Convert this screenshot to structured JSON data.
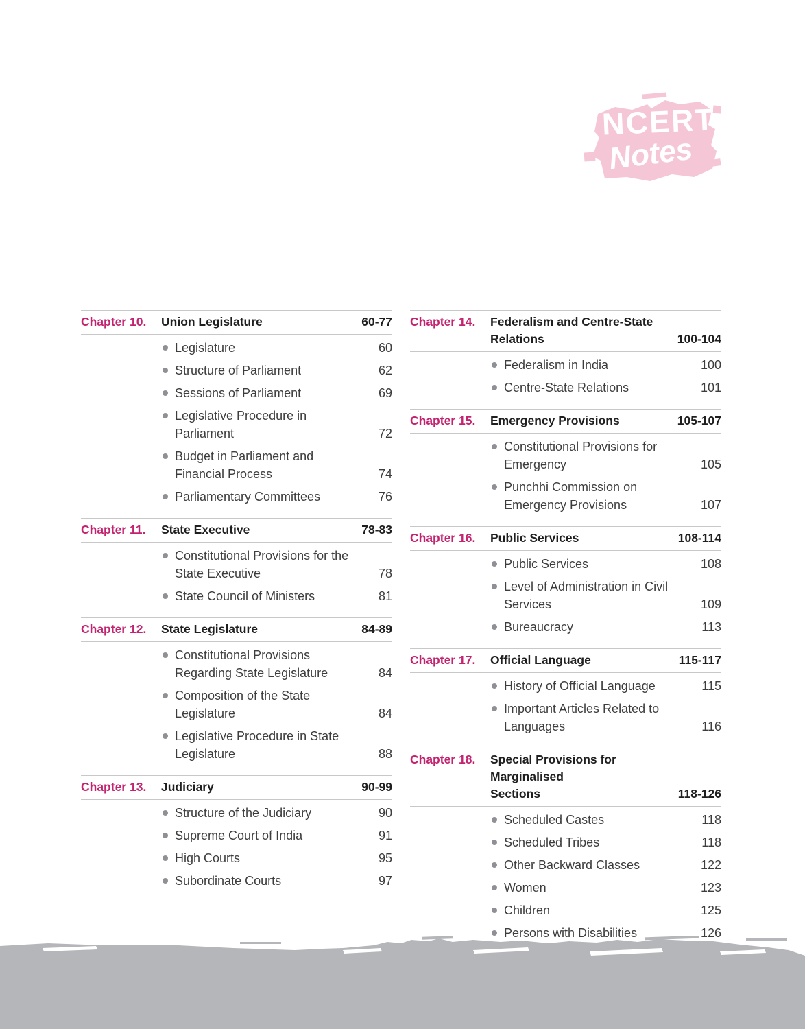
{
  "logo": {
    "title": "NCERT",
    "subtitle": "Notes"
  },
  "colors": {
    "accent_pink": "#c32370",
    "logo_pink": "#f4c6d6",
    "footer_gray": "#b4b6ba",
    "body_text": "#3d3d3d",
    "heading_text": "#1f1f1f",
    "rule_gray": "#c8c8c8",
    "bullet_gray": "#8f9095"
  },
  "toc": {
    "columns": [
      {
        "chapters": [
          {
            "label": "Chapter 10.",
            "title": "Union Legislature",
            "pages": "60-77",
            "items": [
              {
                "text": "Legislature",
                "page": "60"
              },
              {
                "text": "Structure of Parliament",
                "page": "62"
              },
              {
                "text": "Sessions of Parliament",
                "page": "69"
              },
              {
                "text": "Legislative Procedure in\nParliament",
                "page": "72"
              },
              {
                "text": "Budget in Parliament and\nFinancial Process",
                "page": "74"
              },
              {
                "text": "Parliamentary Committees",
                "page": "76"
              }
            ]
          },
          {
            "label": "Chapter 11.",
            "title": "State Executive",
            "pages": "78-83",
            "items": [
              {
                "text": "Constitutional Provisions for the\nState Executive",
                "page": "78"
              },
              {
                "text": "State Council of Ministers",
                "page": "81"
              }
            ]
          },
          {
            "label": "Chapter 12.",
            "title": "State Legislature",
            "pages": "84-89",
            "items": [
              {
                "text": "Constitutional Provisions\nRegarding State Legislature",
                "page": "84"
              },
              {
                "text": "Composition of the State\nLegislature",
                "page": "84"
              },
              {
                "text": "Legislative Procedure in State\nLegislature",
                "page": "88"
              }
            ]
          },
          {
            "label": "Chapter 13.",
            "title": "Judiciary",
            "pages": "90-99",
            "items": [
              {
                "text": "Structure of the Judiciary",
                "page": "90"
              },
              {
                "text": "Supreme Court of India",
                "page": "91"
              },
              {
                "text": "High Courts",
                "page": "95"
              },
              {
                "text": "Subordinate Courts",
                "page": "97"
              }
            ]
          }
        ]
      },
      {
        "chapters": [
          {
            "label": "Chapter 14.",
            "title": "Federalism and  Centre-State\nRelations",
            "pages": "100-104",
            "items": [
              {
                "text": "Federalism in India",
                "page": "100"
              },
              {
                "text": "Centre-State Relations",
                "page": "101"
              }
            ]
          },
          {
            "label": "Chapter 15.",
            "title": "Emergency Provisions",
            "pages": "105-107",
            "items": [
              {
                "text": "Constitutional Provisions for\nEmergency",
                "page": "105"
              },
              {
                "text": "Punchhi Commission on\nEmergency Provisions",
                "page": "107"
              }
            ]
          },
          {
            "label": "Chapter 16.",
            "title": "Public Services",
            "pages": "108-114",
            "items": [
              {
                "text": "Public Services",
                "page": "108"
              },
              {
                "text": "Level of Administration in Civil\nServices",
                "page": "109"
              },
              {
                "text": "Bureaucracy",
                "page": "113"
              }
            ]
          },
          {
            "label": "Chapter 17.",
            "title": "Official Language",
            "pages": "115-117",
            "items": [
              {
                "text": "History of Official Language",
                "page": "115"
              },
              {
                "text": "Important Articles Related to\nLanguages",
                "page": "116"
              }
            ]
          },
          {
            "label": "Chapter 18.",
            "title": "Special Provisions for Marginalised\nSections",
            "pages": "118-126",
            "items": [
              {
                "text": "Scheduled Castes",
                "page": "118"
              },
              {
                "text": "Scheduled Tribes",
                "page": "118"
              },
              {
                "text": "Other Backward Classes",
                "page": "122"
              },
              {
                "text": "Women",
                "page": "123"
              },
              {
                "text": "Children",
                "page": "125"
              },
              {
                "text": "Persons with Disabilities",
                "page": "126"
              }
            ]
          }
        ]
      }
    ]
  }
}
